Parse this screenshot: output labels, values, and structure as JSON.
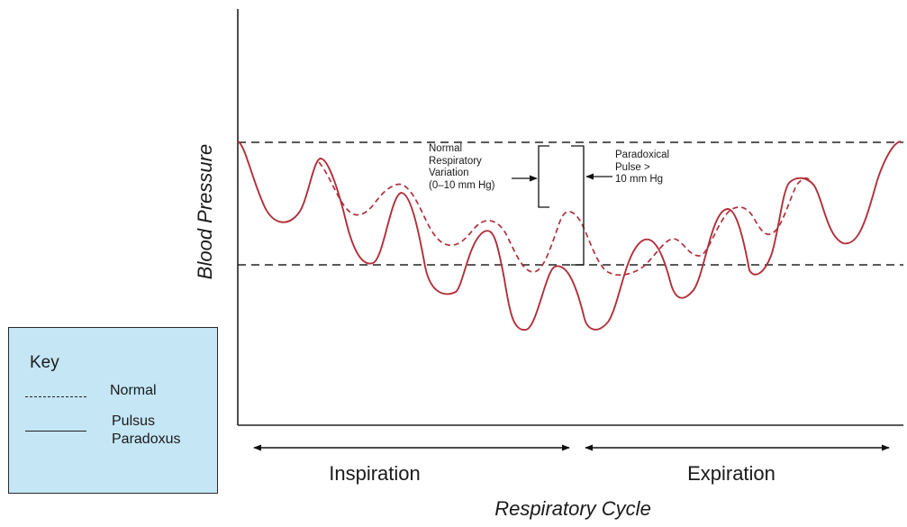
{
  "axes": {
    "ylabel": "Blood Pressure",
    "xlabel": "Respiratory Cycle"
  },
  "phases": {
    "inspiration": "Inspiration",
    "expiration": "Expiration"
  },
  "annotations": {
    "normal_variation": [
      "Normal",
      "Respiratory",
      "Variation",
      "(0–10 mm Hg)"
    ],
    "paradoxical_pulse": [
      "Paradoxical",
      "Pulse >",
      "10 mm Hg"
    ]
  },
  "key": {
    "title": "Key",
    "normal": "Normal",
    "pulsus": [
      "Pulsus",
      "Paradoxus"
    ]
  },
  "colors": {
    "curve": "#b0303a",
    "axis": "#222222",
    "key_background": "#c4e6f5"
  }
}
